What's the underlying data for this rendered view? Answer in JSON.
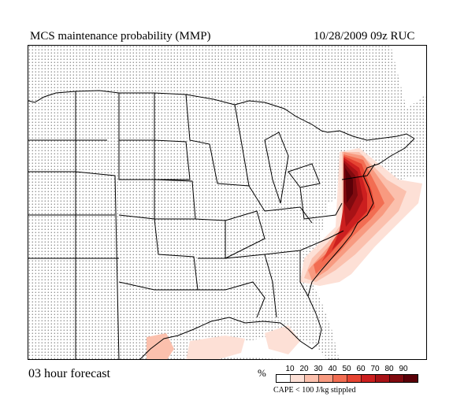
{
  "header": {
    "title": "MCS maintenance probability (MMP)",
    "run_info": "10/28/2009  09z  RUC"
  },
  "footer": {
    "forecast_label": "03 hour forecast",
    "legend_unit": "%",
    "legend_note": "CAPE < 100 J/kg stippled"
  },
  "legend": {
    "ticks": [
      "10",
      "20",
      "30",
      "40",
      "50",
      "60",
      "70",
      "80",
      "90"
    ],
    "colors": [
      "#ffffff",
      "#fde0d6",
      "#fbc0ad",
      "#f89a80",
      "#f26d52",
      "#e64432",
      "#cc1f1f",
      "#a81216",
      "#800a0f",
      "#5a0008"
    ]
  },
  "map": {
    "region": "Contiguous United States",
    "stipple_color": "#000000",
    "border_color": "#000000"
  }
}
